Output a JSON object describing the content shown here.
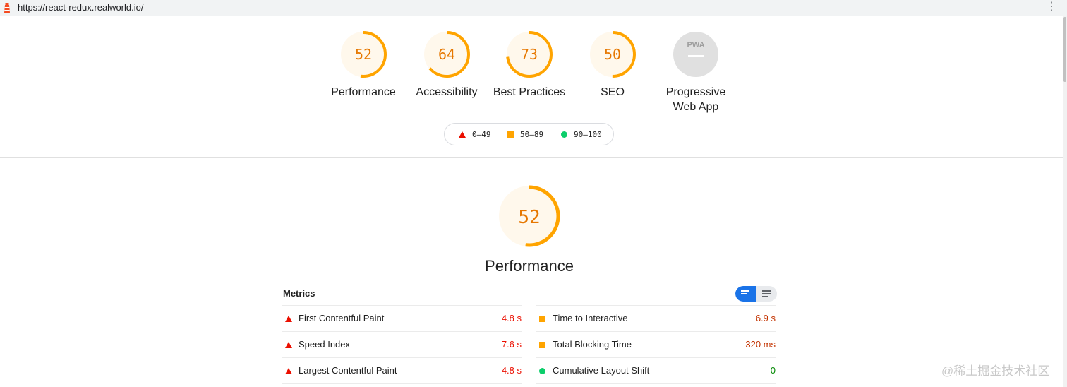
{
  "browser": {
    "url": "https://react-redux.realworld.io/"
  },
  "colors": {
    "fail": "#eb0f00",
    "average": "#ffa400",
    "average_text": "#e67700",
    "pass": "#0cce6b",
    "pass_text": "#008800",
    "na_gray": "#bdbdbd",
    "toggle_active": "#1a73e8"
  },
  "gauges": [
    {
      "score": 52,
      "label": "Performance",
      "status": "average"
    },
    {
      "score": 64,
      "label": "Accessibility",
      "status": "average"
    },
    {
      "score": 73,
      "label": "Best Practices",
      "status": "average"
    },
    {
      "score": 50,
      "label": "SEO",
      "status": "average"
    },
    {
      "score": null,
      "badge": "PWA",
      "label_line1": "Progressive",
      "label_line2": "Web App",
      "status": "not-applicable"
    }
  ],
  "legend": [
    {
      "range": "0–49",
      "shape": "triangle",
      "status": "fail"
    },
    {
      "range": "50–89",
      "shape": "square",
      "status": "average"
    },
    {
      "range": "90–100",
      "shape": "circle",
      "status": "pass"
    }
  ],
  "performance": {
    "score": 52,
    "title": "Performance"
  },
  "metrics": {
    "title": "Metrics",
    "toggle": {
      "active": "compact-view",
      "inactive": "expanded-view"
    },
    "left": [
      {
        "name": "First Contentful Paint",
        "value": "4.8 s",
        "status": "fail"
      },
      {
        "name": "Speed Index",
        "value": "7.6 s",
        "status": "fail"
      },
      {
        "name": "Largest Contentful Paint",
        "value": "4.8 s",
        "status": "fail"
      }
    ],
    "right": [
      {
        "name": "Time to Interactive",
        "value": "6.9 s",
        "status": "average"
      },
      {
        "name": "Total Blocking Time",
        "value": "320 ms",
        "status": "average"
      },
      {
        "name": "Cumulative Layout Shift",
        "value": "0",
        "status": "pass"
      }
    ]
  },
  "watermark": "@稀土掘金技术社区"
}
